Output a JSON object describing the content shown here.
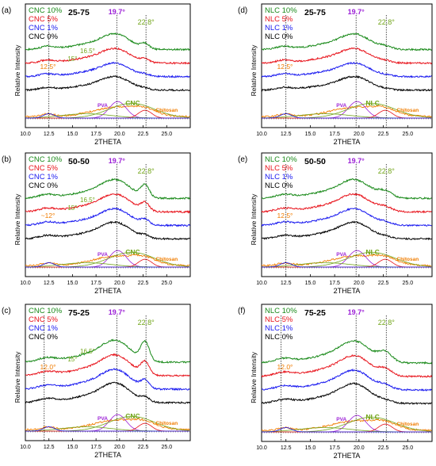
{
  "figure": {
    "colors": {
      "green": "#1a8a1a",
      "red": "#e8141c",
      "blue": "#1a1af0",
      "black": "#000000",
      "orange": "#f07c00",
      "purple": "#9b1fd6",
      "peak_green": "#72a51a"
    },
    "x_axis_title": "2THETA",
    "y_axis_title": "Relative Intensity",
    "x_tick_labels": [
      "10.0",
      "12.5",
      "15.0",
      "17.5",
      "20.0",
      "22.5",
      "25.0"
    ],
    "peak_marks": [
      "19.7°",
      "22.8°",
      "12.5°",
      "12.0°",
      "15°",
      "16.5°",
      "~12°"
    ]
  },
  "chart_data": [
    {
      "type": "line",
      "panel": "(a)",
      "blend": "25-75",
      "filler": "CNC",
      "xlim": [
        10,
        27.5
      ],
      "series": [
        {
          "name": "CNC 10%",
          "color": "green"
        },
        {
          "name": "CNC 5%",
          "color": "red"
        },
        {
          "name": "CNC 1%",
          "color": "blue"
        },
        {
          "name": "CNC 0%",
          "color": "black"
        }
      ],
      "annotations": [
        "19.7°",
        "22.8°",
        "12.5°",
        "15°",
        "16.5°"
      ],
      "deconvolution_labels": [
        "PVA",
        "CNC",
        "Chitosan"
      ]
    },
    {
      "type": "line",
      "panel": "(b)",
      "blend": "50-50",
      "filler": "CNC",
      "xlim": [
        10,
        27.5
      ],
      "series": [
        {
          "name": "CNC 10%",
          "color": "green"
        },
        {
          "name": "CNC 5%",
          "color": "red"
        },
        {
          "name": "CNC 1%",
          "color": "blue"
        },
        {
          "name": "CNC 0%",
          "color": "black"
        }
      ],
      "annotations": [
        "19.7°",
        "22.8°",
        "~12°",
        "15°",
        "16.5°"
      ],
      "deconvolution_labels": [
        "PVA",
        "CNC",
        "Chitosan"
      ]
    },
    {
      "type": "line",
      "panel": "(c)",
      "blend": "75-25",
      "filler": "CNC",
      "xlim": [
        10,
        27.5
      ],
      "series": [
        {
          "name": "CNC 10%",
          "color": "green"
        },
        {
          "name": "CNC 5%",
          "color": "red"
        },
        {
          "name": "CNC 1%",
          "color": "blue"
        },
        {
          "name": "CNC 0%",
          "color": "black"
        }
      ],
      "annotations": [
        "19.7°",
        "22.8°",
        "12.0°",
        "15°",
        "16.5°"
      ],
      "deconvolution_labels": [
        "PVA",
        "CNC",
        "Chitosan"
      ]
    },
    {
      "type": "line",
      "panel": "(d)",
      "blend": "25-75",
      "filler": "NLC",
      "xlim": [
        10,
        27.5
      ],
      "series": [
        {
          "name": "NLC 10%",
          "color": "green"
        },
        {
          "name": "NLC 5%",
          "color": "red"
        },
        {
          "name": "NLC 1%",
          "color": "blue"
        },
        {
          "name": "NLC 0%",
          "color": "black"
        }
      ],
      "annotations": [
        "19.7°",
        "22.8°",
        "12.5°"
      ],
      "deconvolution_labels": [
        "PVA",
        "NLC",
        "Chitosan"
      ]
    },
    {
      "type": "line",
      "panel": "(e)",
      "blend": "50-50",
      "filler": "NLC",
      "xlim": [
        10,
        27.5
      ],
      "series": [
        {
          "name": "NLC 10%",
          "color": "green"
        },
        {
          "name": "NLC 5%",
          "color": "red"
        },
        {
          "name": "NLC 1%",
          "color": "blue"
        },
        {
          "name": "NLC 0%",
          "color": "black"
        }
      ],
      "annotations": [
        "19.7°",
        "22.8°",
        "12.5°"
      ],
      "deconvolution_labels": [
        "PVA",
        "NLC",
        "Chitosan"
      ]
    },
    {
      "type": "line",
      "panel": "(f)",
      "blend": "75-25",
      "filler": "NLC",
      "xlim": [
        10,
        27.5
      ],
      "series": [
        {
          "name": "NLC 10%",
          "color": "green"
        },
        {
          "name": "NLC 5%",
          "color": "red"
        },
        {
          "name": "NLC 1%",
          "color": "blue"
        },
        {
          "name": "NLC 0%",
          "color": "black"
        }
      ],
      "annotations": [
        "19.7°",
        "22.8°",
        "12.0°"
      ],
      "deconvolution_labels": [
        "PVA",
        "NLC",
        "Chitosan"
      ]
    }
  ]
}
